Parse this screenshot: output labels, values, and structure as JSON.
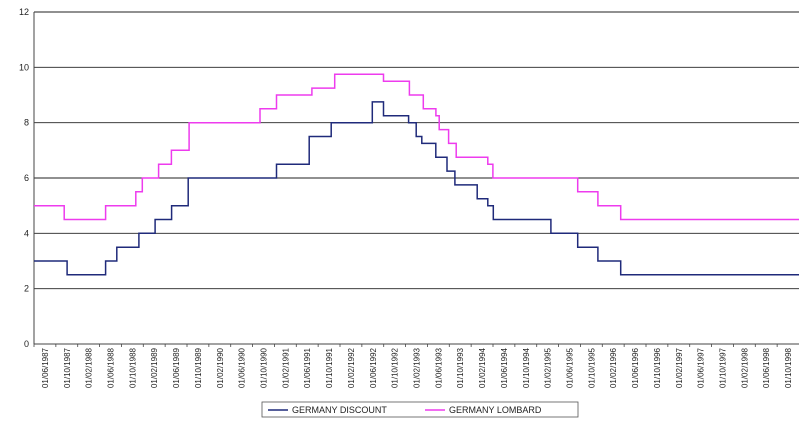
{
  "chart_data": {
    "type": "line",
    "title": "",
    "xlabel": "",
    "ylabel": "",
    "ylim": [
      0,
      12
    ],
    "yticks": [
      0,
      2,
      4,
      6,
      8,
      10,
      12
    ],
    "xlim": [
      "1987-06-01",
      "1998-12-31"
    ],
    "xtick_labels": [
      "01/06/1987",
      "01/10/1987",
      "01/02/1988",
      "01/06/1988",
      "01/10/1988",
      "01/02/1989",
      "01/06/1989",
      "01/10/1989",
      "01/02/1990",
      "01/06/1990",
      "01/10/1990",
      "01/02/1991",
      "01/06/1991",
      "01/10/1991",
      "01/02/1992",
      "01/06/1992",
      "01/10/1992",
      "01/02/1993",
      "01/06/1993",
      "01/10/1993",
      "01/02/1994",
      "01/06/1994",
      "01/10/1994",
      "01/02/1995",
      "01/06/1995",
      "01/10/1995",
      "01/02/1996",
      "01/06/1996",
      "01/10/1996",
      "01/02/1997",
      "01/06/1997",
      "01/10/1997",
      "01/02/1998",
      "01/06/1998",
      "01/10/1998"
    ],
    "grid": "horizontal",
    "legend": "bottom",
    "colors": {
      "discount": "#1f2a7a",
      "lombard": "#ee3bee",
      "grid": "#222222"
    },
    "series": [
      {
        "name": "GERMANY DISCOUNT",
        "step": true,
        "points": [
          [
            "1987-06-01",
            3.0
          ],
          [
            "1987-12-01",
            2.5
          ],
          [
            "1988-07-01",
            3.0
          ],
          [
            "1988-09-01",
            3.5
          ],
          [
            "1989-01-01",
            4.0
          ],
          [
            "1989-04-01",
            4.5
          ],
          [
            "1989-07-01",
            5.0
          ],
          [
            "1989-10-01",
            6.0
          ],
          [
            "1991-02-01",
            6.5
          ],
          [
            "1991-08-01",
            7.5
          ],
          [
            "1991-12-01",
            8.0
          ],
          [
            "1992-07-15",
            8.75
          ],
          [
            "1992-09-15",
            8.25
          ],
          [
            "1993-02-01",
            8.0
          ],
          [
            "1993-03-15",
            7.5
          ],
          [
            "1993-04-15",
            7.25
          ],
          [
            "1993-07-01",
            6.75
          ],
          [
            "1993-09-01",
            6.25
          ],
          [
            "1993-10-15",
            5.75
          ],
          [
            "1994-02-15",
            5.25
          ],
          [
            "1994-04-15",
            5.0
          ],
          [
            "1994-05-15",
            4.5
          ],
          [
            "1995-03-30",
            4.0
          ],
          [
            "1995-08-25",
            3.5
          ],
          [
            "1995-12-15",
            3.0
          ],
          [
            "1996-04-19",
            2.5
          ],
          [
            "1998-12-31",
            2.5
          ]
        ]
      },
      {
        "name": "GERMANY LOMBARD",
        "step": true,
        "points": [
          [
            "1987-06-01",
            5.0
          ],
          [
            "1987-11-15",
            4.5
          ],
          [
            "1988-07-01",
            5.0
          ],
          [
            "1988-12-15",
            5.5
          ],
          [
            "1989-01-20",
            6.0
          ],
          [
            "1989-04-20",
            6.5
          ],
          [
            "1989-06-30",
            7.0
          ],
          [
            "1989-10-06",
            8.0
          ],
          [
            "1990-11-02",
            8.5
          ],
          [
            "1991-02-01",
            9.0
          ],
          [
            "1991-08-16",
            9.25
          ],
          [
            "1991-12-20",
            9.75
          ],
          [
            "1992-09-15",
            9.5
          ],
          [
            "1993-02-05",
            9.0
          ],
          [
            "1993-04-23",
            8.5
          ],
          [
            "1993-07-02",
            8.25
          ],
          [
            "1993-07-20",
            7.75
          ],
          [
            "1993-09-10",
            7.25
          ],
          [
            "1993-10-22",
            6.75
          ],
          [
            "1994-04-15",
            6.5
          ],
          [
            "1994-05-13",
            6.0
          ],
          [
            "1995-08-25",
            5.5
          ],
          [
            "1995-12-15",
            5.0
          ],
          [
            "1996-04-19",
            4.5
          ],
          [
            "1998-12-31",
            4.5
          ]
        ]
      }
    ]
  }
}
